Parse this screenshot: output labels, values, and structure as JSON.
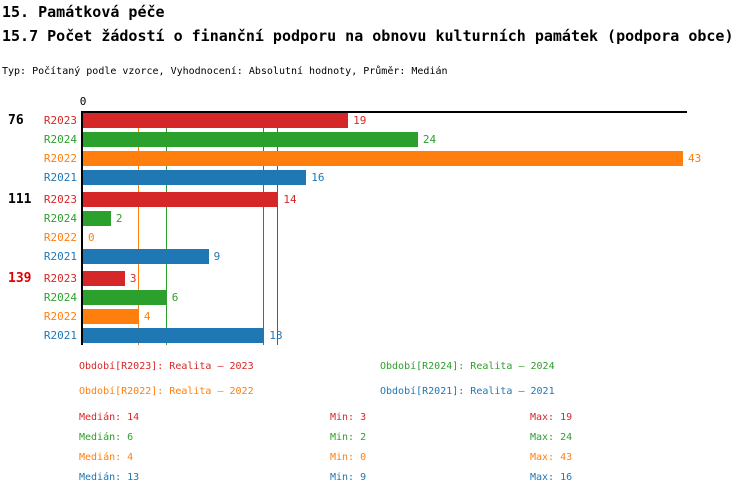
{
  "header": {
    "title_line1": "15. Památková péče",
    "title_line2": "15.7 Počet žádostí o finanční podporu na obnovu kulturních památek (podpora obce)",
    "meta": "Typ: Počítaný podle vzorce, Vyhodnocení: Absolutní hodnoty, Průměr: Medián"
  },
  "chart_data": {
    "type": "bar",
    "orientation": "horizontal",
    "axis_origin_label": "0",
    "xlim": [
      0,
      43
    ],
    "grid": "median-lines-per-series",
    "legend_position": "bottom",
    "series_order": [
      "R2023",
      "R2024",
      "R2022",
      "R2021"
    ],
    "series_colors": {
      "R2023": "#d62728",
      "R2024": "#2ca02c",
      "R2022": "#ff7f0e",
      "R2021": "#1f77b4"
    },
    "groups": [
      {
        "label": "76",
        "label_color": "#000000",
        "values": {
          "R2023": 19,
          "R2024": 24,
          "R2022": 43,
          "R2021": 16
        }
      },
      {
        "label": "111",
        "label_color": "#000000",
        "values": {
          "R2023": 14,
          "R2024": 2,
          "R2022": 0,
          "R2021": 9
        }
      },
      {
        "label": "139",
        "label_color": "#e00000",
        "values": {
          "R2023": 3,
          "R2024": 6,
          "R2022": 4,
          "R2021": 13
        }
      }
    ],
    "median_lines": {
      "R2023": 14,
      "R2024": 6,
      "R2022": 4,
      "R2021": 13
    }
  },
  "legend": [
    {
      "series": "R2023",
      "text": "Období[R2023]: Realita – 2023",
      "color": "#d62728"
    },
    {
      "series": "R2024",
      "text": "Období[R2024]: Realita – 2024",
      "color": "#2ca02c"
    },
    {
      "series": "R2022",
      "text": "Období[R2022]: Realita – 2022",
      "color": "#ff7f0e"
    },
    {
      "series": "R2021",
      "text": "Období[R2021]: Realita – 2021",
      "color": "#1f77b4"
    }
  ],
  "stats": {
    "labels": {
      "median": "Medián",
      "min": "Min",
      "max": "Max"
    },
    "rows": [
      {
        "series": "R2023",
        "color": "#d62728",
        "median": 14,
        "min": 3,
        "max": 19
      },
      {
        "series": "R2024",
        "color": "#2ca02c",
        "median": 6,
        "min": 2,
        "max": 24
      },
      {
        "series": "R2022",
        "color": "#ff7f0e",
        "median": 4,
        "min": 0,
        "max": 43
      },
      {
        "series": "R2021",
        "color": "#1f77b4",
        "median": 13,
        "min": 9,
        "max": 16
      }
    ]
  }
}
